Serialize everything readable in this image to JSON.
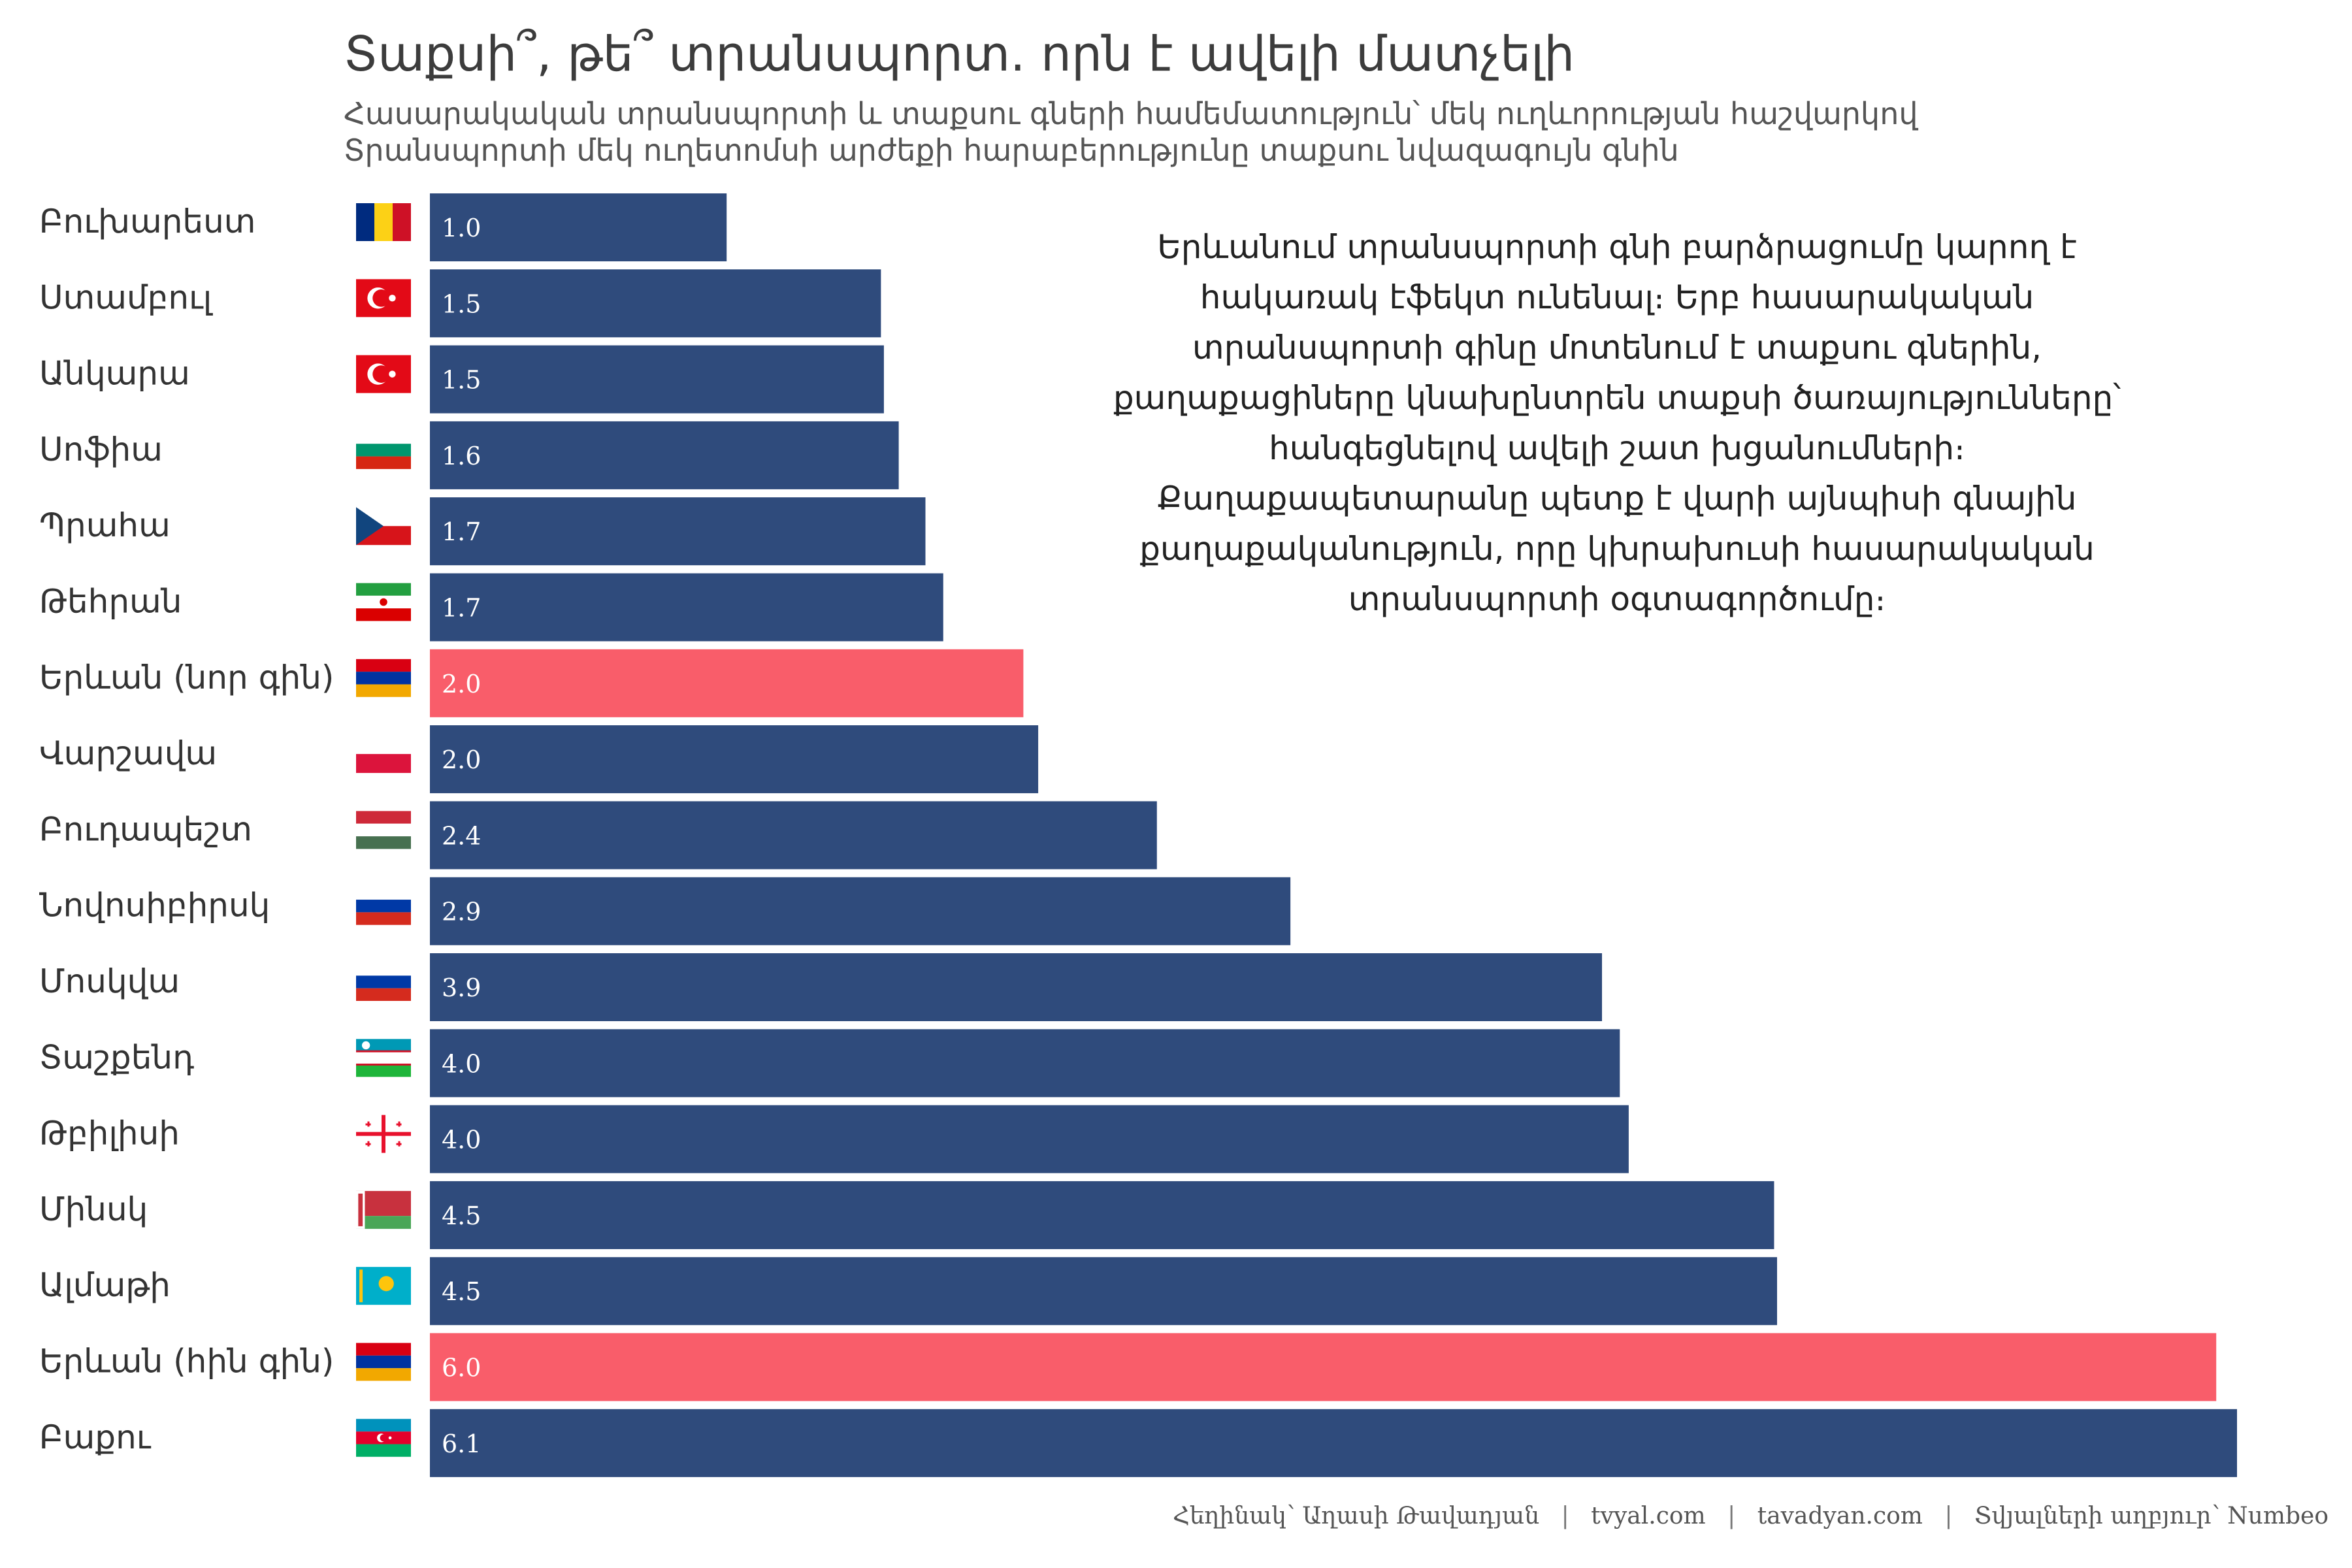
{
  "chart_data": {
    "type": "bar",
    "orientation": "horizontal",
    "title": "Տաքսի՞, թե՞ տրանսպորտ. որն է ավելի մատչելի",
    "subtitle_lines": [
      "Հասարակական տրանսպորտի և տաքսու գների համեմատություն՝ մեկ ուղևորության հաշվարկով",
      "Տրանսպորտի մեկ ուղետոմսի արժեքի հարաբերությունը տաքսու նվազագույն գնին"
    ],
    "categories": [
      "Բուխարեստ",
      "Ստամբուլ",
      "Անկարա",
      "Սոֆիա",
      "Պրահա",
      "Թեհրան",
      "Երևան (նոր գին)",
      "Վարշավա",
      "Բուդապեշտ",
      "Նովոսիբիրսկ",
      "Մոսկվա",
      "Տաշքենդ",
      "Թբիլիսի",
      "Մինսկ",
      "Ալմաթի",
      "Երևան (հին գին)",
      "Բաքու"
    ],
    "values": [
      1.0,
      1.52,
      1.53,
      1.58,
      1.67,
      1.73,
      2.0,
      2.05,
      2.45,
      2.9,
      3.95,
      4.01,
      4.04,
      4.53,
      4.54,
      6.02,
      6.09
    ],
    "value_labels": [
      "1.0",
      "1.5",
      "1.5",
      "1.6",
      "1.7",
      "1.7",
      "2.0",
      "2.0",
      "2.4",
      "2.9",
      "3.9",
      "4.0",
      "4.0",
      "4.5",
      "4.5",
      "6.0",
      "6.1"
    ],
    "flags": [
      "romania",
      "turkey",
      "turkey",
      "bulgaria",
      "czechia",
      "iran",
      "armenia",
      "poland",
      "hungary",
      "russia",
      "russia",
      "uzbekistan",
      "georgia",
      "belarus",
      "kazakhstan",
      "armenia",
      "azerbaijan"
    ],
    "highlight": [
      false,
      false,
      false,
      false,
      false,
      false,
      true,
      false,
      false,
      false,
      false,
      false,
      false,
      false,
      false,
      true,
      false
    ],
    "colors": {
      "bar": "#2f4b7c",
      "highlight": "#f95d6a",
      "label": "#ffffff"
    },
    "xlim": [
      0,
      6.09
    ],
    "xlabel": "",
    "ylabel": "",
    "grid": false
  },
  "annotation": "Երևանում տրանսպորտի գնի բարձրացումը կարող է հակառակ էֆեկտ ունենալ։ Երբ հասարակական տրանսպորտի գինը մոտենում է տաքսու գներին, քաղաքացիները կնախընտրեն տաքսի ծառայությունները՝ հանգեցնելով ավելի շատ խցանումների։ Քաղաքապետարանը պետք է վարի այնպիսի գնային քաղաքականություն, որը կխրախուսի հասարակական տրանսպորտի օգտագործումը։",
  "caption": {
    "author": "Հեղինակ՝ Աղասի Թավադյան",
    "site1": "tvyal.com",
    "site2": "tavadyan.com",
    "source_label": "Տվյալների աղբյուր՝",
    "source": "Numbeo",
    "separator": "|"
  }
}
